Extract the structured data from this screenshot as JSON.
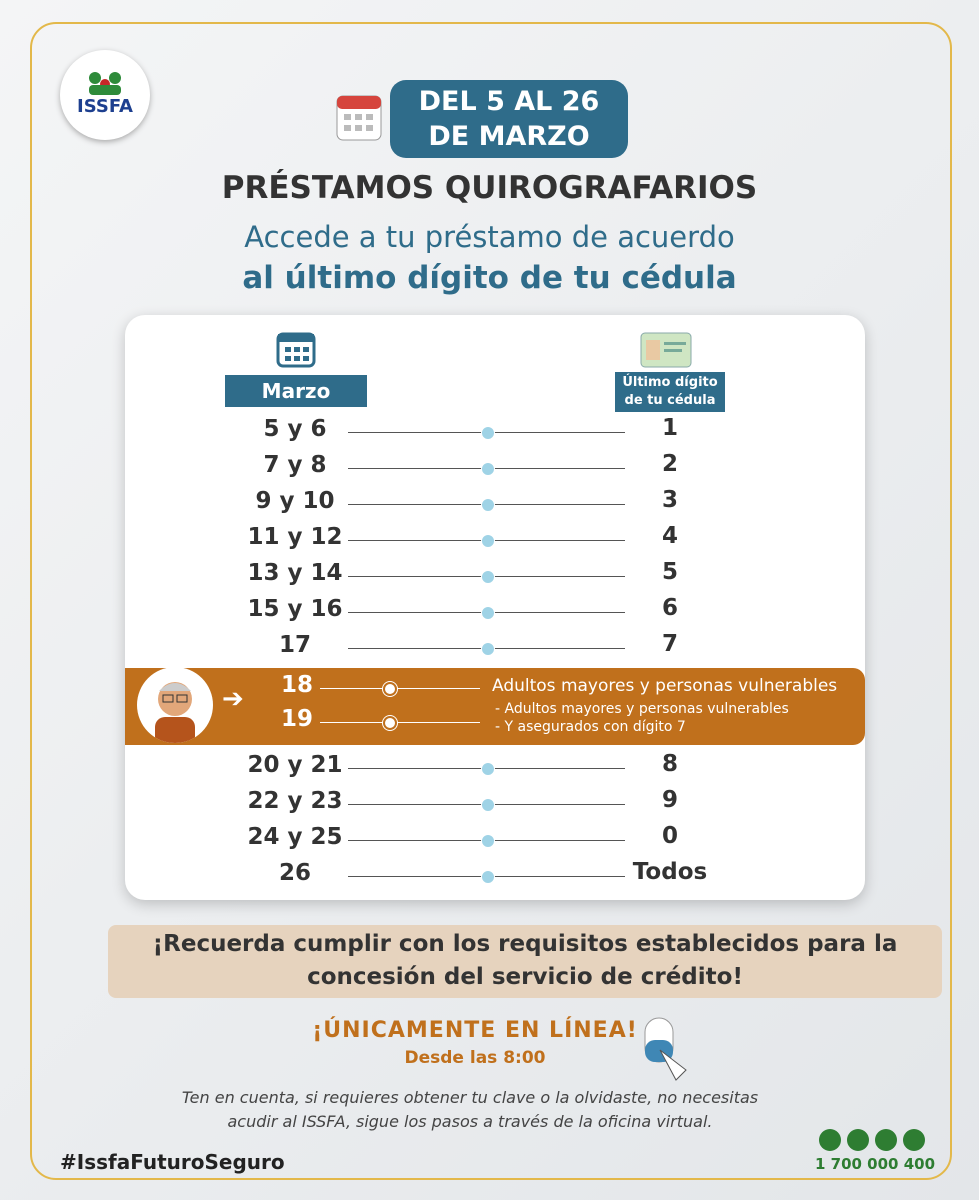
{
  "logo": "ISSFA",
  "date_badge": [
    "DEL 5 AL 26",
    "DE MARZO"
  ],
  "title": "PRÉSTAMOS QUIROGRAFARIOS",
  "subtitle": [
    "Accede a tu préstamo de acuerdo",
    "al último dígito de tu cédula"
  ],
  "table": {
    "month_header": "Marzo",
    "digit_header": [
      "Último dígito",
      "de tu cédula"
    ],
    "rows_before": [
      [
        "5 y 6",
        "1"
      ],
      [
        "7 y 8",
        "2"
      ],
      [
        "9 y 10",
        "3"
      ],
      [
        "11 y 12",
        "4"
      ],
      [
        "13 y 14",
        "5"
      ],
      [
        "15 y 16",
        "6"
      ],
      [
        "17",
        "7"
      ]
    ],
    "highlight": {
      "dates": [
        "18",
        "19"
      ],
      "line_18": "Adultos mayores y personas vulnerables",
      "items_19": [
        "- Adultos mayores y personas vulnerables",
        "- Y asegurados con dígito 7"
      ]
    },
    "rows_after": [
      [
        "20 y 21",
        "8"
      ],
      [
        "22 y 23",
        "9"
      ],
      [
        "24 y 25",
        "0"
      ],
      [
        "26",
        "Todos"
      ]
    ]
  },
  "reminder": [
    "¡Recuerda cumplir con los requisitos establecidos para la",
    "concesión del servicio de crédito!"
  ],
  "online": {
    "title": "¡ÚNICAMENTE EN LÍNEA!",
    "time": "Desde las 8:00"
  },
  "note": [
    "Ten en cuenta, si requieres obtener tu clave o la olvidaste, no necesitas",
    "acudir al ISSFA, sigue los pasos a través de la oficina virtual."
  ],
  "hashtag": "#IssfaFuturoSeguro",
  "phone": "1 700 000 400"
}
